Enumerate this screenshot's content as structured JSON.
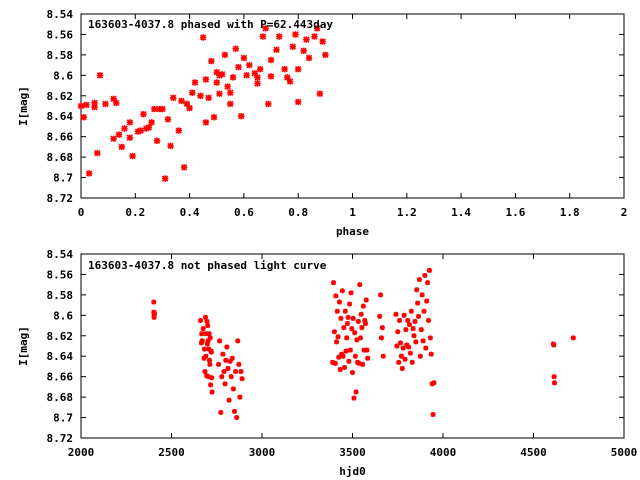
{
  "chart_data": [
    {
      "type": "scatter",
      "title": "163603-4037.8 phased with P=62.443day",
      "xlabel": "phase",
      "ylabel": "I[mag]",
      "xlim": [
        0,
        2
      ],
      "ylim": [
        8.72,
        8.54
      ],
      "y_inverted": true,
      "grid": false,
      "marker_color": "#ff0000",
      "x_ticks": [
        "0",
        "0.2",
        "0.4",
        "0.6",
        "0.8",
        "1",
        "1.2",
        "1.4",
        "1.6",
        "1.8",
        "2"
      ],
      "y_ticks": [
        "8.54",
        "8.56",
        "8.58",
        "8.6",
        "8.62",
        "8.64",
        "8.66",
        "8.68",
        "8.7",
        "8.72"
      ],
      "series": [
        {
          "x": [
            0.0,
            0.01,
            0.02,
            0.03,
            0.05,
            0.05,
            0.06,
            0.07,
            0.09,
            0.12,
            0.12,
            0.13,
            0.14,
            0.15,
            0.16,
            0.18,
            0.18,
            0.19,
            0.21,
            0.22,
            0.23,
            0.24,
            0.25,
            0.26,
            0.27,
            0.28,
            0.29,
            0.3,
            0.31,
            0.32,
            0.33,
            0.34,
            0.36,
            0.37,
            0.38,
            0.39,
            0.4,
            0.41,
            0.42,
            0.44,
            0.45,
            0.46,
            0.46,
            0.47,
            0.48,
            0.49,
            0.5,
            0.5,
            0.51,
            0.51,
            0.52,
            0.53,
            0.54,
            0.55,
            0.55,
            0.56,
            0.57,
            0.58,
            0.59,
            0.6,
            0.61,
            0.62,
            0.64,
            0.65,
            0.65,
            0.66,
            0.67,
            0.68,
            0.69,
            0.7,
            0.7,
            0.72,
            0.73,
            0.75,
            0.76,
            0.77,
            0.78,
            0.79,
            0.8,
            0.8,
            0.82,
            0.83,
            0.84,
            0.86,
            0.87,
            0.88,
            0.89,
            0.9
          ],
          "y": [
            8.63,
            8.641,
            8.629,
            8.696,
            8.627,
            8.631,
            8.676,
            8.6,
            8.628,
            8.623,
            8.662,
            8.627,
            8.658,
            8.67,
            8.652,
            8.661,
            8.646,
            8.679,
            8.655,
            8.654,
            8.638,
            8.652,
            8.651,
            8.646,
            8.633,
            8.664,
            8.633,
            8.633,
            8.701,
            8.643,
            8.669,
            8.622,
            8.654,
            8.625,
            8.69,
            8.628,
            8.632,
            8.617,
            8.607,
            8.62,
            8.563,
            8.646,
            8.604,
            8.622,
            8.586,
            8.641,
            8.597,
            8.607,
            8.618,
            8.6,
            8.599,
            8.58,
            8.611,
            8.628,
            8.617,
            8.602,
            8.574,
            8.592,
            8.64,
            8.583,
            8.6,
            8.59,
            8.598,
            8.608,
            8.602,
            8.594,
            8.562,
            8.554,
            8.628,
            8.585,
            8.601,
            8.575,
            8.562,
            8.594,
            8.602,
            8.606,
            8.572,
            8.56,
            8.626,
            8.594,
            8.576,
            8.565,
            8.583,
            8.562,
            8.554,
            8.618,
            8.567,
            8.58
          ]
        }
      ]
    },
    {
      "type": "scatter",
      "title": "163603-4037.8 not phased light curve",
      "xlabel": "hjd0",
      "ylabel": "I[mag]",
      "xlim": [
        2000,
        5000
      ],
      "ylim": [
        8.72,
        8.54
      ],
      "y_inverted": true,
      "grid": false,
      "marker_color": "#ff0000",
      "x_ticks": [
        "2000",
        "2500",
        "3000",
        "3500",
        "4000",
        "4500",
        "5000"
      ],
      "y_ticks": [
        "8.54",
        "8.56",
        "8.58",
        "8.6",
        "8.62",
        "8.64",
        "8.66",
        "8.68",
        "8.7",
        "8.72"
      ],
      "series": [
        {
          "x": [
            2402,
            2402,
            2404,
            2404,
            2406,
            2660,
            2665,
            2667,
            2670,
            2675,
            2680,
            2682,
            2685,
            2688,
            2690,
            2692,
            2694,
            2696,
            2698,
            2700,
            2702,
            2704,
            2706,
            2708,
            2710,
            2712,
            2714,
            2716,
            2718,
            2720,
            2722,
            2724,
            2760,
            2766,
            2772,
            2778,
            2784,
            2790,
            2796,
            2800,
            2806,
            2812,
            2818,
            2824,
            2830,
            2836,
            2842,
            2848,
            2854,
            2860,
            2866,
            2872,
            2878,
            2884,
            2890,
            3390,
            3395,
            3400,
            3405,
            3408,
            3412,
            3416,
            3420,
            3424,
            3428,
            3432,
            3436,
            3440,
            3444,
            3448,
            3452,
            3456,
            3460,
            3464,
            3468,
            3472,
            3476,
            3480,
            3484,
            3488,
            3492,
            3496,
            3500,
            3504,
            3508,
            3512,
            3516,
            3520,
            3524,
            3528,
            3532,
            3536,
            3540,
            3544,
            3548,
            3552,
            3556,
            3560,
            3564,
            3568,
            3572,
            3576,
            3580,
            3584,
            3650,
            3655,
            3660,
            3665,
            3670,
            3740,
            3745,
            3750,
            3755,
            3760,
            3765,
            3770,
            3775,
            3780,
            3785,
            3790,
            3795,
            3800,
            3805,
            3810,
            3815,
            3820,
            3825,
            3830,
            3835,
            3840,
            3845,
            3850,
            3855,
            3860,
            3865,
            3870,
            3875,
            3880,
            3885,
            3890,
            3895,
            3900,
            3905,
            3910,
            3915,
            3920,
            3925,
            3930,
            3935,
            3940,
            3945,
            3950,
            4610,
            4612,
            4614,
            4616,
            4720
          ],
          "y": [
            8.587,
            8.597,
            8.6,
            8.602,
            8.598,
            8.605,
            8.627,
            8.618,
            8.625,
            8.613,
            8.642,
            8.633,
            8.655,
            8.602,
            8.64,
            8.618,
            8.659,
            8.606,
            8.628,
            8.61,
            8.625,
            8.66,
            8.633,
            8.618,
            8.644,
            8.648,
            8.622,
            8.668,
            8.635,
            8.636,
            8.661,
            8.675,
            8.648,
            8.625,
            8.695,
            8.66,
            8.638,
            8.655,
            8.667,
            8.644,
            8.631,
            8.652,
            8.683,
            8.645,
            8.66,
            8.642,
            8.672,
            8.694,
            8.655,
            8.7,
            8.625,
            8.648,
            8.68,
            8.655,
            8.662,
            8.646,
            8.568,
            8.616,
            8.647,
            8.581,
            8.626,
            8.596,
            8.621,
            8.641,
            8.587,
            8.653,
            8.603,
            8.638,
            8.576,
            8.64,
            8.612,
            8.651,
            8.596,
            8.635,
            8.622,
            8.608,
            8.602,
            8.645,
            8.589,
            8.634,
            8.578,
            8.613,
            8.656,
            8.603,
            8.681,
            8.617,
            8.64,
            8.675,
            8.624,
            8.646,
            8.606,
            8.647,
            8.57,
            8.622,
            8.599,
            8.612,
            8.648,
            8.591,
            8.634,
            8.605,
            8.608,
            8.585,
            8.634,
            8.642,
            8.601,
            8.58,
            8.622,
            8.612,
            8.64,
            8.599,
            8.63,
            8.616,
            8.646,
            8.605,
            8.627,
            8.64,
            8.652,
            8.632,
            8.6,
            8.643,
            8.614,
            8.629,
            8.605,
            8.631,
            8.609,
            8.637,
            8.596,
            8.646,
            8.613,
            8.62,
            8.606,
            8.626,
            8.575,
            8.588,
            8.601,
            8.565,
            8.64,
            8.614,
            8.58,
            8.625,
            8.596,
            8.561,
            8.632,
            8.586,
            8.568,
            8.605,
            8.556,
            8.622,
            8.638,
            8.667,
            8.697,
            8.666,
            8.628,
            8.629,
            8.66,
            8.666,
            8.622
          ]
        }
      ]
    }
  ]
}
